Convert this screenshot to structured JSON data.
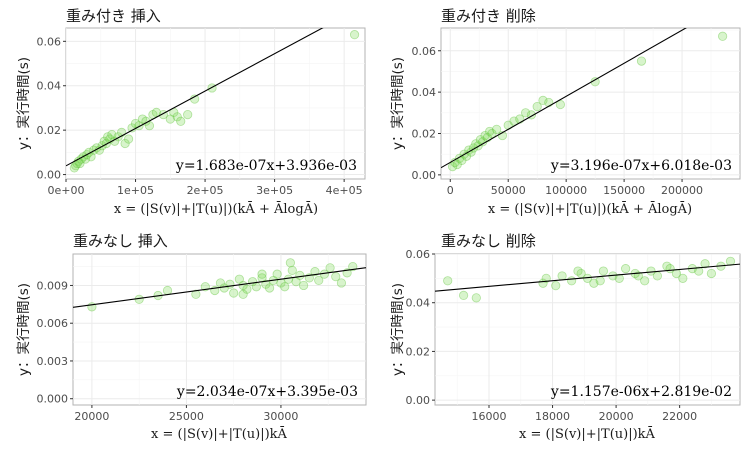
{
  "ylabel": "y：実行時間(s)",
  "chart_data": [
    {
      "type": "scatter",
      "title": "重み付き 挿入",
      "xlabel": "x = (|S(v)|+|T(u)|)(kĀ + ĀlogĀ)",
      "ylabel": "y：実行時間(s)",
      "xlim": [
        0,
        430000
      ],
      "ylim": [
        -0.002,
        0.066
      ],
      "xticks": [
        0,
        100000,
        200000,
        300000,
        400000
      ],
      "xtick_labels": [
        "0e+00",
        "1e+05",
        "2e+05",
        "3e+05",
        "4e+05"
      ],
      "yticks": [
        0,
        0.02,
        0.04,
        0.06
      ],
      "ytick_labels": [
        "0.00",
        "0.02",
        "0.04",
        "0.06"
      ],
      "fit": {
        "slope": 1.683e-07,
        "intercept": 0.003936
      },
      "equation": "y=1.683e-07x+3.936e-03",
      "grid": true,
      "x": [
        12000,
        14000,
        16000,
        18000,
        20000,
        22000,
        25000,
        28000,
        30000,
        33000,
        36000,
        40000,
        44000,
        48000,
        52000,
        55000,
        58000,
        60000,
        63000,
        66000,
        70000,
        75000,
        80000,
        85000,
        90000,
        95000,
        100000,
        105000,
        110000,
        115000,
        120000,
        125000,
        130000,
        140000,
        150000,
        155000,
        160000,
        165000,
        175000,
        185000,
        210000,
        415000
      ],
      "y": [
        0.003,
        0.004,
        0.005,
        0.006,
        0.005,
        0.007,
        0.008,
        0.007,
        0.009,
        0.01,
        0.008,
        0.011,
        0.012,
        0.011,
        0.013,
        0.015,
        0.014,
        0.017,
        0.016,
        0.018,
        0.015,
        0.017,
        0.019,
        0.014,
        0.016,
        0.021,
        0.023,
        0.022,
        0.025,
        0.024,
        0.022,
        0.027,
        0.028,
        0.027,
        0.025,
        0.028,
        0.026,
        0.024,
        0.027,
        0.034,
        0.039,
        0.063
      ]
    },
    {
      "type": "scatter",
      "title": "重み付き 削除",
      "xlabel": "x = (|S(v)|+|T(u)|)(kĀ + ĀlogĀ)",
      "ylabel": "y：実行時間(s)",
      "xlim": [
        -8000,
        250000
      ],
      "ylim": [
        -0.002,
        0.071
      ],
      "xticks": [
        0,
        50000,
        100000,
        150000,
        200000
      ],
      "xtick_labels": [
        "0",
        "50000",
        "100000",
        "150000",
        "200000"
      ],
      "yticks": [
        0,
        0.02,
        0.04,
        0.06
      ],
      "ytick_labels": [
        "0.00",
        "0.02",
        "0.04",
        "0.06"
      ],
      "fit": {
        "slope": 3.196e-07,
        "intercept": 0.006018
      },
      "equation": "y=3.196e-07x+6.018e-03",
      "grid": true,
      "x": [
        2000,
        4000,
        6000,
        8000,
        10000,
        12000,
        14000,
        16000,
        18000,
        20000,
        22000,
        24000,
        26000,
        28000,
        30000,
        32000,
        34000,
        36000,
        40000,
        45000,
        50000,
        55000,
        60000,
        65000,
        70000,
        75000,
        80000,
        85000,
        95000,
        125000,
        165000,
        235000
      ],
      "y": [
        0.004,
        0.006,
        0.005,
        0.008,
        0.007,
        0.01,
        0.009,
        0.012,
        0.011,
        0.013,
        0.015,
        0.014,
        0.017,
        0.016,
        0.019,
        0.018,
        0.021,
        0.02,
        0.022,
        0.019,
        0.024,
        0.026,
        0.027,
        0.03,
        0.029,
        0.033,
        0.036,
        0.035,
        0.034,
        0.045,
        0.055,
        0.067
      ]
    },
    {
      "type": "scatter",
      "title": "重みなし 挿入",
      "xlabel": "x = (|S(v)|+|T(u)|)kĀ",
      "ylabel": "y：実行時間(s)",
      "xlim": [
        19000,
        34500
      ],
      "ylim": [
        -0.0005,
        0.0115
      ],
      "xticks": [
        20000,
        25000,
        30000
      ],
      "xtick_labels": [
        "20000",
        "25000",
        "30000"
      ],
      "yticks": [
        0,
        0.003,
        0.006,
        0.009
      ],
      "ytick_labels": [
        "0.000",
        "0.003",
        "0.006",
        "0.009"
      ],
      "fit": {
        "slope": 2.034e-07,
        "intercept": 0.003395
      },
      "equation": "y=2.034e-07x+3.395e-03",
      "grid": true,
      "x": [
        20000,
        22500,
        23500,
        24000,
        25500,
        26000,
        26500,
        26800,
        27000,
        27300,
        27500,
        27800,
        28000,
        28200,
        28500,
        28700,
        29000,
        29200,
        29400,
        29600,
        29800,
        30000,
        30200,
        30400,
        30600,
        30800,
        31000,
        31200,
        31500,
        31800,
        32000,
        32300,
        32600,
        32900,
        33200,
        33500,
        33800,
        29000,
        28000,
        30500
      ],
      "y": [
        0.0073,
        0.0079,
        0.0082,
        0.0086,
        0.0083,
        0.0089,
        0.0086,
        0.0092,
        0.0088,
        0.0091,
        0.0084,
        0.0095,
        0.009,
        0.0087,
        0.0093,
        0.0089,
        0.0096,
        0.0091,
        0.0088,
        0.0094,
        0.0099,
        0.0092,
        0.0089,
        0.0095,
        0.0102,
        0.0093,
        0.0098,
        0.009,
        0.0096,
        0.0101,
        0.0094,
        0.0099,
        0.0104,
        0.0097,
        0.0092,
        0.01,
        0.0105,
        0.0099,
        0.0083,
        0.0108
      ]
    },
    {
      "type": "scatter",
      "title": "重みなし 削除",
      "xlabel": "x = (|S(v)|+|T(u)|)kĀ",
      "ylabel": "y：実行時間(s)",
      "xlim": [
        14300,
        23900
      ],
      "ylim": [
        -0.002,
        0.06
      ],
      "xticks": [
        16000,
        18000,
        20000,
        22000
      ],
      "xtick_labels": [
        "16000",
        "18000",
        "20000",
        "22000"
      ],
      "yticks": [
        0,
        0.02,
        0.04,
        0.06
      ],
      "ytick_labels": [
        "0.00",
        "0.02",
        "0.04",
        "0.06"
      ],
      "fit": {
        "slope": 1.157e-06,
        "intercept": 0.02819
      },
      "equation": "y=1.157e-06x+2.819e-02",
      "grid": true,
      "x": [
        14700,
        15200,
        15600,
        17700,
        17800,
        18100,
        18300,
        18600,
        18900,
        19100,
        19300,
        19600,
        19900,
        20100,
        20300,
        20600,
        20900,
        21100,
        21300,
        21600,
        21900,
        22100,
        22400,
        22600,
        22800,
        23000,
        23300,
        23600,
        19500,
        20700,
        21700,
        18800
      ],
      "y": [
        0.049,
        0.043,
        0.042,
        0.048,
        0.05,
        0.047,
        0.051,
        0.049,
        0.052,
        0.05,
        0.048,
        0.053,
        0.051,
        0.05,
        0.054,
        0.052,
        0.049,
        0.053,
        0.051,
        0.055,
        0.052,
        0.05,
        0.054,
        0.053,
        0.056,
        0.052,
        0.055,
        0.057,
        0.049,
        0.051,
        0.054,
        0.053
      ]
    }
  ]
}
